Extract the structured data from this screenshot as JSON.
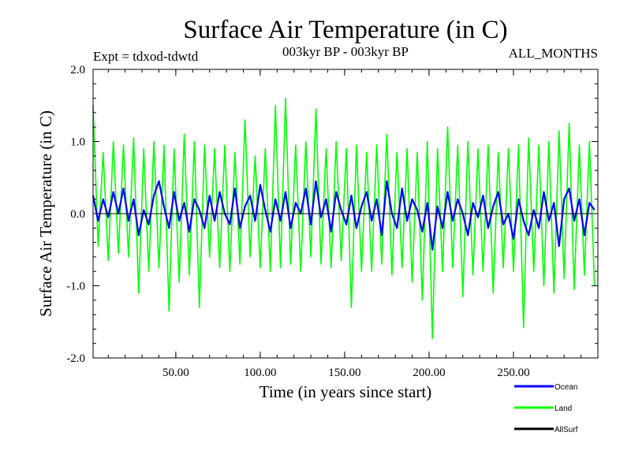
{
  "chart_data": {
    "type": "line",
    "title": "Surface Air Temperature (in C)",
    "subtitle_left": "Expt = tdxod-tdwtd",
    "subtitle_center": "003kyr BP - 003kyr BP",
    "subtitle_right": "ALL_MONTHS",
    "xlabel": "Time (in years since start)",
    "ylabel": "Surface Air Temperature (in C)",
    "xlim": [
      1,
      300
    ],
    "ylim": [
      -2.0,
      2.0
    ],
    "x_ticks": [
      50,
      100,
      150,
      200,
      250
    ],
    "x_tick_labels": [
      "50.00",
      "100.00",
      "150.00",
      "200.00",
      "250.00"
    ],
    "y_ticks": [
      -2.0,
      -1.0,
      0.0,
      1.0,
      2.0
    ],
    "y_tick_labels": [
      "-2.0",
      "-1.0",
      "0.0",
      "1.0",
      "2.0"
    ],
    "grid": false,
    "legend_position": "bottom-right",
    "series": [
      {
        "name": "Land",
        "color": "#00ff00",
        "x": [
          1,
          4,
          7,
          10,
          13,
          16,
          19,
          22,
          25,
          28,
          31,
          34,
          37,
          40,
          43,
          46,
          49,
          52,
          55,
          58,
          61,
          64,
          67,
          70,
          73,
          76,
          79,
          82,
          85,
          88,
          91,
          94,
          97,
          100,
          103,
          106,
          109,
          112,
          115,
          118,
          121,
          124,
          127,
          130,
          133,
          136,
          139,
          142,
          145,
          148,
          151,
          154,
          157,
          160,
          163,
          166,
          169,
          172,
          175,
          178,
          181,
          184,
          187,
          190,
          193,
          196,
          199,
          202,
          205,
          208,
          211,
          214,
          217,
          220,
          223,
          226,
          229,
          232,
          235,
          238,
          241,
          244,
          247,
          250,
          253,
          256,
          259,
          262,
          265,
          268,
          271,
          274,
          277,
          280,
          283,
          286,
          289,
          292,
          295,
          298
        ],
        "values": [
          1.5,
          -0.45,
          0.85,
          -0.65,
          1.0,
          -0.55,
          0.95,
          -0.6,
          1.05,
          -1.1,
          0.9,
          -0.8,
          1.0,
          -0.75,
          0.95,
          -1.35,
          0.9,
          -0.95,
          1.1,
          -0.85,
          1.0,
          -1.3,
          0.95,
          -0.6,
          0.9,
          -0.75,
          0.95,
          -0.8,
          0.85,
          -0.7,
          1.3,
          -0.6,
          0.8,
          -0.75,
          0.9,
          -0.8,
          1.5,
          -0.75,
          1.6,
          -0.7,
          0.95,
          -0.8,
          1.0,
          -0.6,
          1.45,
          -0.7,
          0.9,
          -0.75,
          1.0,
          -0.65,
          0.9,
          -1.3,
          0.95,
          -0.8,
          0.85,
          -0.8,
          0.95,
          -0.7,
          1.1,
          -0.85,
          0.85,
          -0.75,
          0.9,
          -0.95,
          0.85,
          -1.2,
          1.0,
          -1.73,
          0.9,
          -0.8,
          1.2,
          -0.75,
          0.95,
          -1.15,
          1.0,
          -0.85,
          0.9,
          -0.8,
          0.95,
          -1.1,
          0.85,
          -0.75,
          0.9,
          -0.8,
          0.95,
          -1.58,
          1.05,
          -0.8,
          0.95,
          -1.0,
          1.0,
          -1.1,
          1.15,
          -0.9,
          1.25,
          -1.05,
          0.95,
          -0.85,
          1.0,
          -1.0
        ]
      },
      {
        "name": "Ocean",
        "color": "#0000ff",
        "x": [
          1,
          4,
          7,
          10,
          13,
          16,
          19,
          22,
          25,
          28,
          31,
          34,
          37,
          40,
          43,
          46,
          49,
          52,
          55,
          58,
          61,
          64,
          67,
          70,
          73,
          76,
          79,
          82,
          85,
          88,
          91,
          94,
          97,
          100,
          103,
          106,
          109,
          112,
          115,
          118,
          121,
          124,
          127,
          130,
          133,
          136,
          139,
          142,
          145,
          148,
          151,
          154,
          157,
          160,
          163,
          166,
          169,
          172,
          175,
          178,
          181,
          184,
          187,
          190,
          193,
          196,
          199,
          202,
          205,
          208,
          211,
          214,
          217,
          220,
          223,
          226,
          229,
          232,
          235,
          238,
          241,
          244,
          247,
          250,
          253,
          256,
          259,
          262,
          265,
          268,
          271,
          274,
          277,
          280,
          283,
          286,
          289,
          292,
          295,
          298
        ],
        "values": [
          0.25,
          -0.1,
          0.2,
          -0.05,
          0.3,
          0.0,
          0.35,
          -0.1,
          0.2,
          -0.3,
          0.05,
          -0.15,
          0.25,
          0.45,
          0.1,
          -0.2,
          0.3,
          -0.1,
          0.15,
          -0.25,
          0.2,
          0.05,
          -0.2,
          0.25,
          -0.1,
          0.3,
          0.0,
          -0.15,
          0.35,
          -0.2,
          0.1,
          0.25,
          -0.1,
          0.4,
          0.05,
          -0.25,
          0.2,
          -0.1,
          0.3,
          -0.2,
          0.15,
          0.0,
          0.35,
          -0.15,
          0.45,
          -0.05,
          0.2,
          -0.25,
          0.3,
          0.05,
          -0.15,
          0.25,
          -0.2,
          0.1,
          0.3,
          -0.1,
          0.2,
          -0.3,
          0.45,
          0.0,
          -0.2,
          0.35,
          -0.1,
          0.2,
          0.05,
          -0.25,
          0.15,
          -0.5,
          0.1,
          -0.2,
          0.3,
          -0.1,
          0.2,
          0.0,
          -0.3,
          0.15,
          -0.05,
          0.25,
          -0.2,
          0.1,
          0.3,
          -0.15,
          0.0,
          -0.35,
          0.2,
          -0.1,
          -0.3,
          0.05,
          -0.2,
          0.3,
          -0.1,
          0.15,
          -0.45,
          0.2,
          0.35,
          -0.1,
          0.2,
          -0.3,
          0.15,
          0.05
        ]
      },
      {
        "name": "AllSurf",
        "color": "#000000",
        "x": [
          1,
          4,
          7,
          10,
          13,
          16,
          19,
          22,
          25,
          28,
          31,
          34,
          37,
          40,
          43,
          46,
          49,
          52,
          55,
          58,
          61,
          64,
          67,
          70,
          73,
          76,
          79,
          82,
          85,
          88,
          91,
          94,
          97,
          100,
          103,
          106,
          109,
          112,
          115,
          118,
          121,
          124,
          127,
          130,
          133,
          136,
          139,
          142,
          145,
          148,
          151,
          154,
          157,
          160,
          163,
          166,
          169,
          172,
          175,
          178,
          181,
          184,
          187,
          190,
          193,
          196,
          199,
          202,
          205,
          208,
          211,
          214,
          217,
          220,
          223,
          226,
          229,
          232,
          235,
          238,
          241,
          244,
          247,
          250,
          253,
          256,
          259,
          262,
          265,
          268,
          271,
          274,
          277,
          280,
          283,
          286,
          289,
          292,
          295,
          298
        ],
        "values": [
          0,
          0,
          0,
          0,
          0,
          0,
          0,
          0,
          0,
          0,
          0,
          0,
          0,
          0,
          0,
          0,
          0,
          0,
          0,
          0,
          0,
          0,
          0,
          0,
          0,
          0,
          0,
          0,
          0,
          0,
          0,
          0,
          0,
          0,
          0,
          0,
          0,
          0,
          0,
          0,
          0,
          0,
          0,
          0,
          0,
          0,
          0,
          0,
          0,
          0,
          0,
          0,
          0,
          0,
          0,
          0,
          0,
          0,
          0,
          0,
          0,
          0,
          0,
          0,
          0,
          0,
          0,
          0,
          0,
          0,
          0,
          0,
          0,
          0,
          0,
          0,
          0,
          0,
          0,
          0,
          0,
          0,
          0,
          0,
          0,
          0,
          0,
          0,
          0,
          0,
          0,
          0,
          0,
          0,
          0,
          0,
          0,
          0,
          0,
          0
        ]
      }
    ],
    "legend": [
      "Ocean",
      "Land",
      "AllSurf"
    ],
    "legend_colors": [
      "#0000ff",
      "#00ff00",
      "#000000"
    ]
  }
}
